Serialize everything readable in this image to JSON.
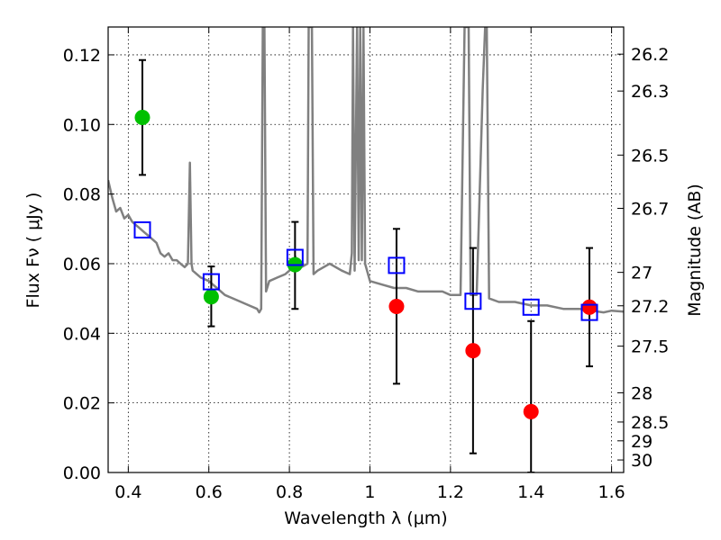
{
  "chart_data": {
    "type": "scatter",
    "xlabel": "Wavelength  λ (μm)",
    "ylabel": "Flux  Fν  ( μJy )",
    "ylabel_right": "Magnitude (AB)",
    "xlim": [
      0.35,
      1.63
    ],
    "ylim": [
      0.0,
      0.128
    ],
    "x_ticks": [
      0.4,
      0.6,
      0.8,
      1.0,
      1.2,
      1.4,
      1.6
    ],
    "x_tick_labels": [
      "0.4",
      "0.6",
      "0.8",
      "1",
      "1.2",
      "1.4",
      "1.6"
    ],
    "y_ticks": [
      0.0,
      0.02,
      0.04,
      0.06,
      0.08,
      0.1,
      0.12
    ],
    "y_tick_labels": [
      "0.00",
      "0.02",
      "0.04",
      "0.06",
      "0.08",
      "0.10",
      "0.12"
    ],
    "right_ticks": [
      {
        "flux": 0.1202,
        "label": "26.2"
      },
      {
        "flux": 0.1096,
        "label": "26.3"
      },
      {
        "flux": 0.0912,
        "label": "26.5"
      },
      {
        "flux": 0.0759,
        "label": "26.7"
      },
      {
        "flux": 0.0575,
        "label": "27"
      },
      {
        "flux": 0.0479,
        "label": "27.2"
      },
      {
        "flux": 0.0363,
        "label": "27.5"
      },
      {
        "flux": 0.0229,
        "label": "28"
      },
      {
        "flux": 0.0145,
        "label": "28.5"
      },
      {
        "flux": 0.0091,
        "label": "29"
      },
      {
        "flux": 0.0036,
        "label": "30"
      }
    ],
    "grid": true,
    "colors": {
      "model": "#808080",
      "green": "#00c000",
      "red": "#ff0000",
      "square": "#0000ff",
      "errorbar": "#000000"
    },
    "series": [
      {
        "marker": "circle",
        "color": "green",
        "points": [
          {
            "x": 0.435,
            "y": 0.102,
            "yerr_low": 0.0855,
            "yerr_high": 0.1185
          },
          {
            "x": 0.606,
            "y": 0.0505,
            "yerr_low": 0.042,
            "yerr_high": 0.0592
          },
          {
            "x": 0.814,
            "y": 0.0597,
            "yerr_low": 0.047,
            "yerr_high": 0.072
          }
        ]
      },
      {
        "marker": "circle",
        "color": "red",
        "points": [
          {
            "x": 1.066,
            "y": 0.0477,
            "yerr_low": 0.0255,
            "yerr_high": 0.07
          },
          {
            "x": 1.256,
            "y": 0.035,
            "yerr_low": 0.0055,
            "yerr_high": 0.0645
          },
          {
            "x": 1.4,
            "y": 0.0175,
            "yerr_low": 0.0,
            "yerr_high": 0.0435
          },
          {
            "x": 1.545,
            "y": 0.0475,
            "yerr_low": 0.0305,
            "yerr_high": 0.0645
          }
        ]
      },
      {
        "marker": "square",
        "color": "square",
        "points": [
          {
            "x": 0.435,
            "y": 0.0697
          },
          {
            "x": 0.606,
            "y": 0.0548
          },
          {
            "x": 0.814,
            "y": 0.0618
          },
          {
            "x": 1.066,
            "y": 0.0595
          },
          {
            "x": 1.256,
            "y": 0.0492
          },
          {
            "x": 1.4,
            "y": 0.0475
          },
          {
            "x": 1.545,
            "y": 0.046
          }
        ]
      }
    ],
    "model_spectrum": [
      [
        0.35,
        0.084
      ],
      [
        0.36,
        0.079
      ],
      [
        0.37,
        0.075
      ],
      [
        0.38,
        0.076
      ],
      [
        0.39,
        0.073
      ],
      [
        0.4,
        0.074
      ],
      [
        0.41,
        0.072
      ],
      [
        0.42,
        0.071
      ],
      [
        0.43,
        0.07
      ],
      [
        0.44,
        0.069
      ],
      [
        0.45,
        0.068
      ],
      [
        0.46,
        0.067
      ],
      [
        0.47,
        0.066
      ],
      [
        0.48,
        0.063
      ],
      [
        0.49,
        0.062
      ],
      [
        0.5,
        0.063
      ],
      [
        0.51,
        0.061
      ],
      [
        0.52,
        0.061
      ],
      [
        0.53,
        0.06
      ],
      [
        0.54,
        0.059
      ],
      [
        0.548,
        0.06
      ],
      [
        0.553,
        0.089
      ],
      [
        0.557,
        0.06
      ],
      [
        0.56,
        0.058
      ],
      [
        0.58,
        0.056
      ],
      [
        0.6,
        0.055
      ],
      [
        0.62,
        0.053
      ],
      [
        0.64,
        0.051
      ],
      [
        0.66,
        0.05
      ],
      [
        0.68,
        0.049
      ],
      [
        0.7,
        0.048
      ],
      [
        0.72,
        0.047
      ],
      [
        0.725,
        0.046
      ],
      [
        0.73,
        0.047
      ],
      [
        0.734,
        0.128
      ],
      [
        0.738,
        0.128
      ],
      [
        0.742,
        0.052
      ],
      [
        0.75,
        0.055
      ],
      [
        0.77,
        0.056
      ],
      [
        0.79,
        0.057
      ],
      [
        0.8,
        0.058
      ],
      [
        0.815,
        0.062
      ],
      [
        0.82,
        0.06
      ],
      [
        0.83,
        0.059
      ],
      [
        0.845,
        0.06
      ],
      [
        0.848,
        0.128
      ],
      [
        0.856,
        0.128
      ],
      [
        0.86,
        0.057
      ],
      [
        0.87,
        0.058
      ],
      [
        0.9,
        0.06
      ],
      [
        0.93,
        0.058
      ],
      [
        0.95,
        0.057
      ],
      [
        0.955,
        0.063
      ],
      [
        0.958,
        0.128
      ],
      [
        0.962,
        0.058
      ],
      [
        0.968,
        0.128
      ],
      [
        0.972,
        0.061
      ],
      [
        0.976,
        0.128
      ],
      [
        0.98,
        0.061
      ],
      [
        0.984,
        0.128
      ],
      [
        0.988,
        0.06
      ],
      [
        1.0,
        0.055
      ],
      [
        1.03,
        0.054
      ],
      [
        1.06,
        0.053
      ],
      [
        1.09,
        0.053
      ],
      [
        1.12,
        0.052
      ],
      [
        1.15,
        0.052
      ],
      [
        1.18,
        0.052
      ],
      [
        1.2,
        0.051
      ],
      [
        1.225,
        0.051
      ],
      [
        1.235,
        0.128
      ],
      [
        1.245,
        0.128
      ],
      [
        1.25,
        0.051
      ],
      [
        1.265,
        0.051
      ],
      [
        1.28,
        0.11
      ],
      [
        1.286,
        0.128
      ],
      [
        1.29,
        0.128
      ],
      [
        1.296,
        0.05
      ],
      [
        1.32,
        0.049
      ],
      [
        1.36,
        0.049
      ],
      [
        1.4,
        0.048
      ],
      [
        1.44,
        0.048
      ],
      [
        1.48,
        0.047
      ],
      [
        1.52,
        0.047
      ],
      [
        1.55,
        0.0465
      ],
      [
        1.58,
        0.046
      ],
      [
        1.6,
        0.0465
      ],
      [
        1.63,
        0.0462
      ]
    ]
  }
}
